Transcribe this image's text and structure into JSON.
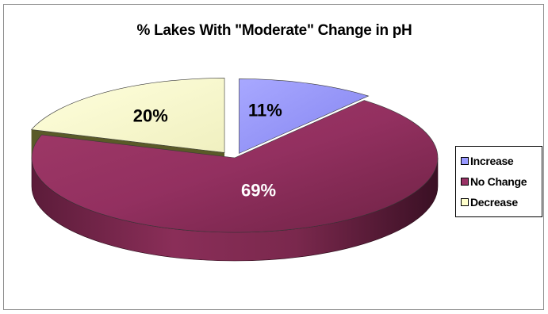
{
  "chart_data": {
    "type": "pie",
    "title": "% Lakes With \"Moderate\" Change in pH",
    "categories": [
      "Increase",
      "No Change",
      "Decrease"
    ],
    "values": [
      11,
      69,
      20
    ],
    "data_labels": [
      "11%",
      "69%",
      "20%"
    ],
    "colors": [
      "#9999ff",
      "#993366",
      "#ffffcc"
    ],
    "exploded": [
      "Increase",
      "Decrease"
    ],
    "style": "3d",
    "legend_position": "right"
  }
}
